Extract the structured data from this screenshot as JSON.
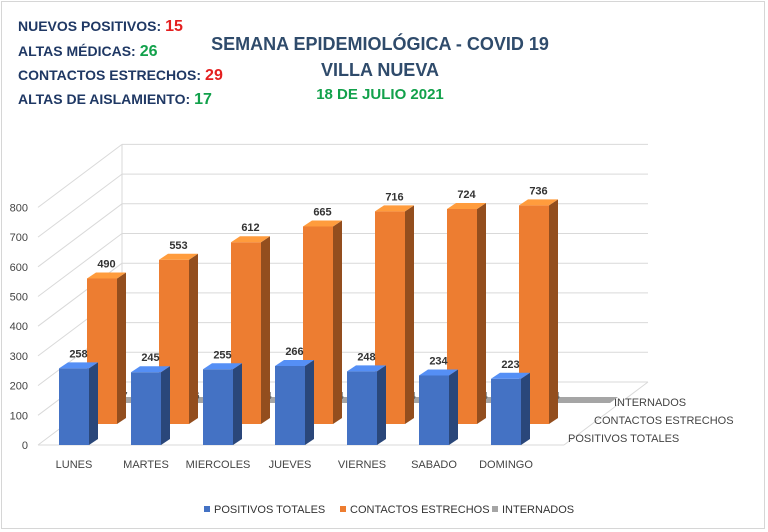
{
  "stats": [
    {
      "label": "NUEVOS POSITIVOS:",
      "value": "15",
      "color": "#e41f1f"
    },
    {
      "label": "ALTAS MÉDICAS:",
      "value": "26",
      "color": "#12a14b"
    },
    {
      "label": "CONTACTOS ESTRECHOS:",
      "value": "29",
      "color": "#e41f1f"
    },
    {
      "label": "ALTAS DE AISLAMIENTO:",
      "value": "17",
      "color": "#12a14b"
    }
  ],
  "title": {
    "line1": "SEMANA EPIDEMIOLÓGICA - COVID 19",
    "line2": "VILLA NUEVA",
    "date": "18 DE JULIO 2021"
  },
  "chart_data": {
    "type": "bar",
    "categories": [
      "LUNES",
      "MARTES",
      "MIERCOLES",
      "JUEVES",
      "VIERNES",
      "SABADO",
      "DOMINGO"
    ],
    "series": [
      {
        "name": "POSITIVOS TOTALES",
        "values": [
          258,
          245,
          255,
          266,
          248,
          234,
          223
        ],
        "color": "#4472c4"
      },
      {
        "name": "CONTACTOS ESTRECHOS",
        "values": [
          490,
          553,
          612,
          665,
          716,
          724,
          736
        ],
        "color": "#ed7d31"
      },
      {
        "name": "INTERNADOS",
        "values": [
          7,
          6,
          4,
          4,
          4,
          4,
          4
        ],
        "color": "#a5a5a5"
      }
    ],
    "yticks": [
      0,
      100,
      200,
      300,
      400,
      500,
      600,
      700,
      800
    ],
    "ylim": [
      0,
      800
    ],
    "depth_labels": [
      "INTERNADOS",
      "CONTACTOS ESTRECHOS",
      "POSITIVOS TOTALES"
    ],
    "legend_position": "bottom",
    "grid": true
  }
}
